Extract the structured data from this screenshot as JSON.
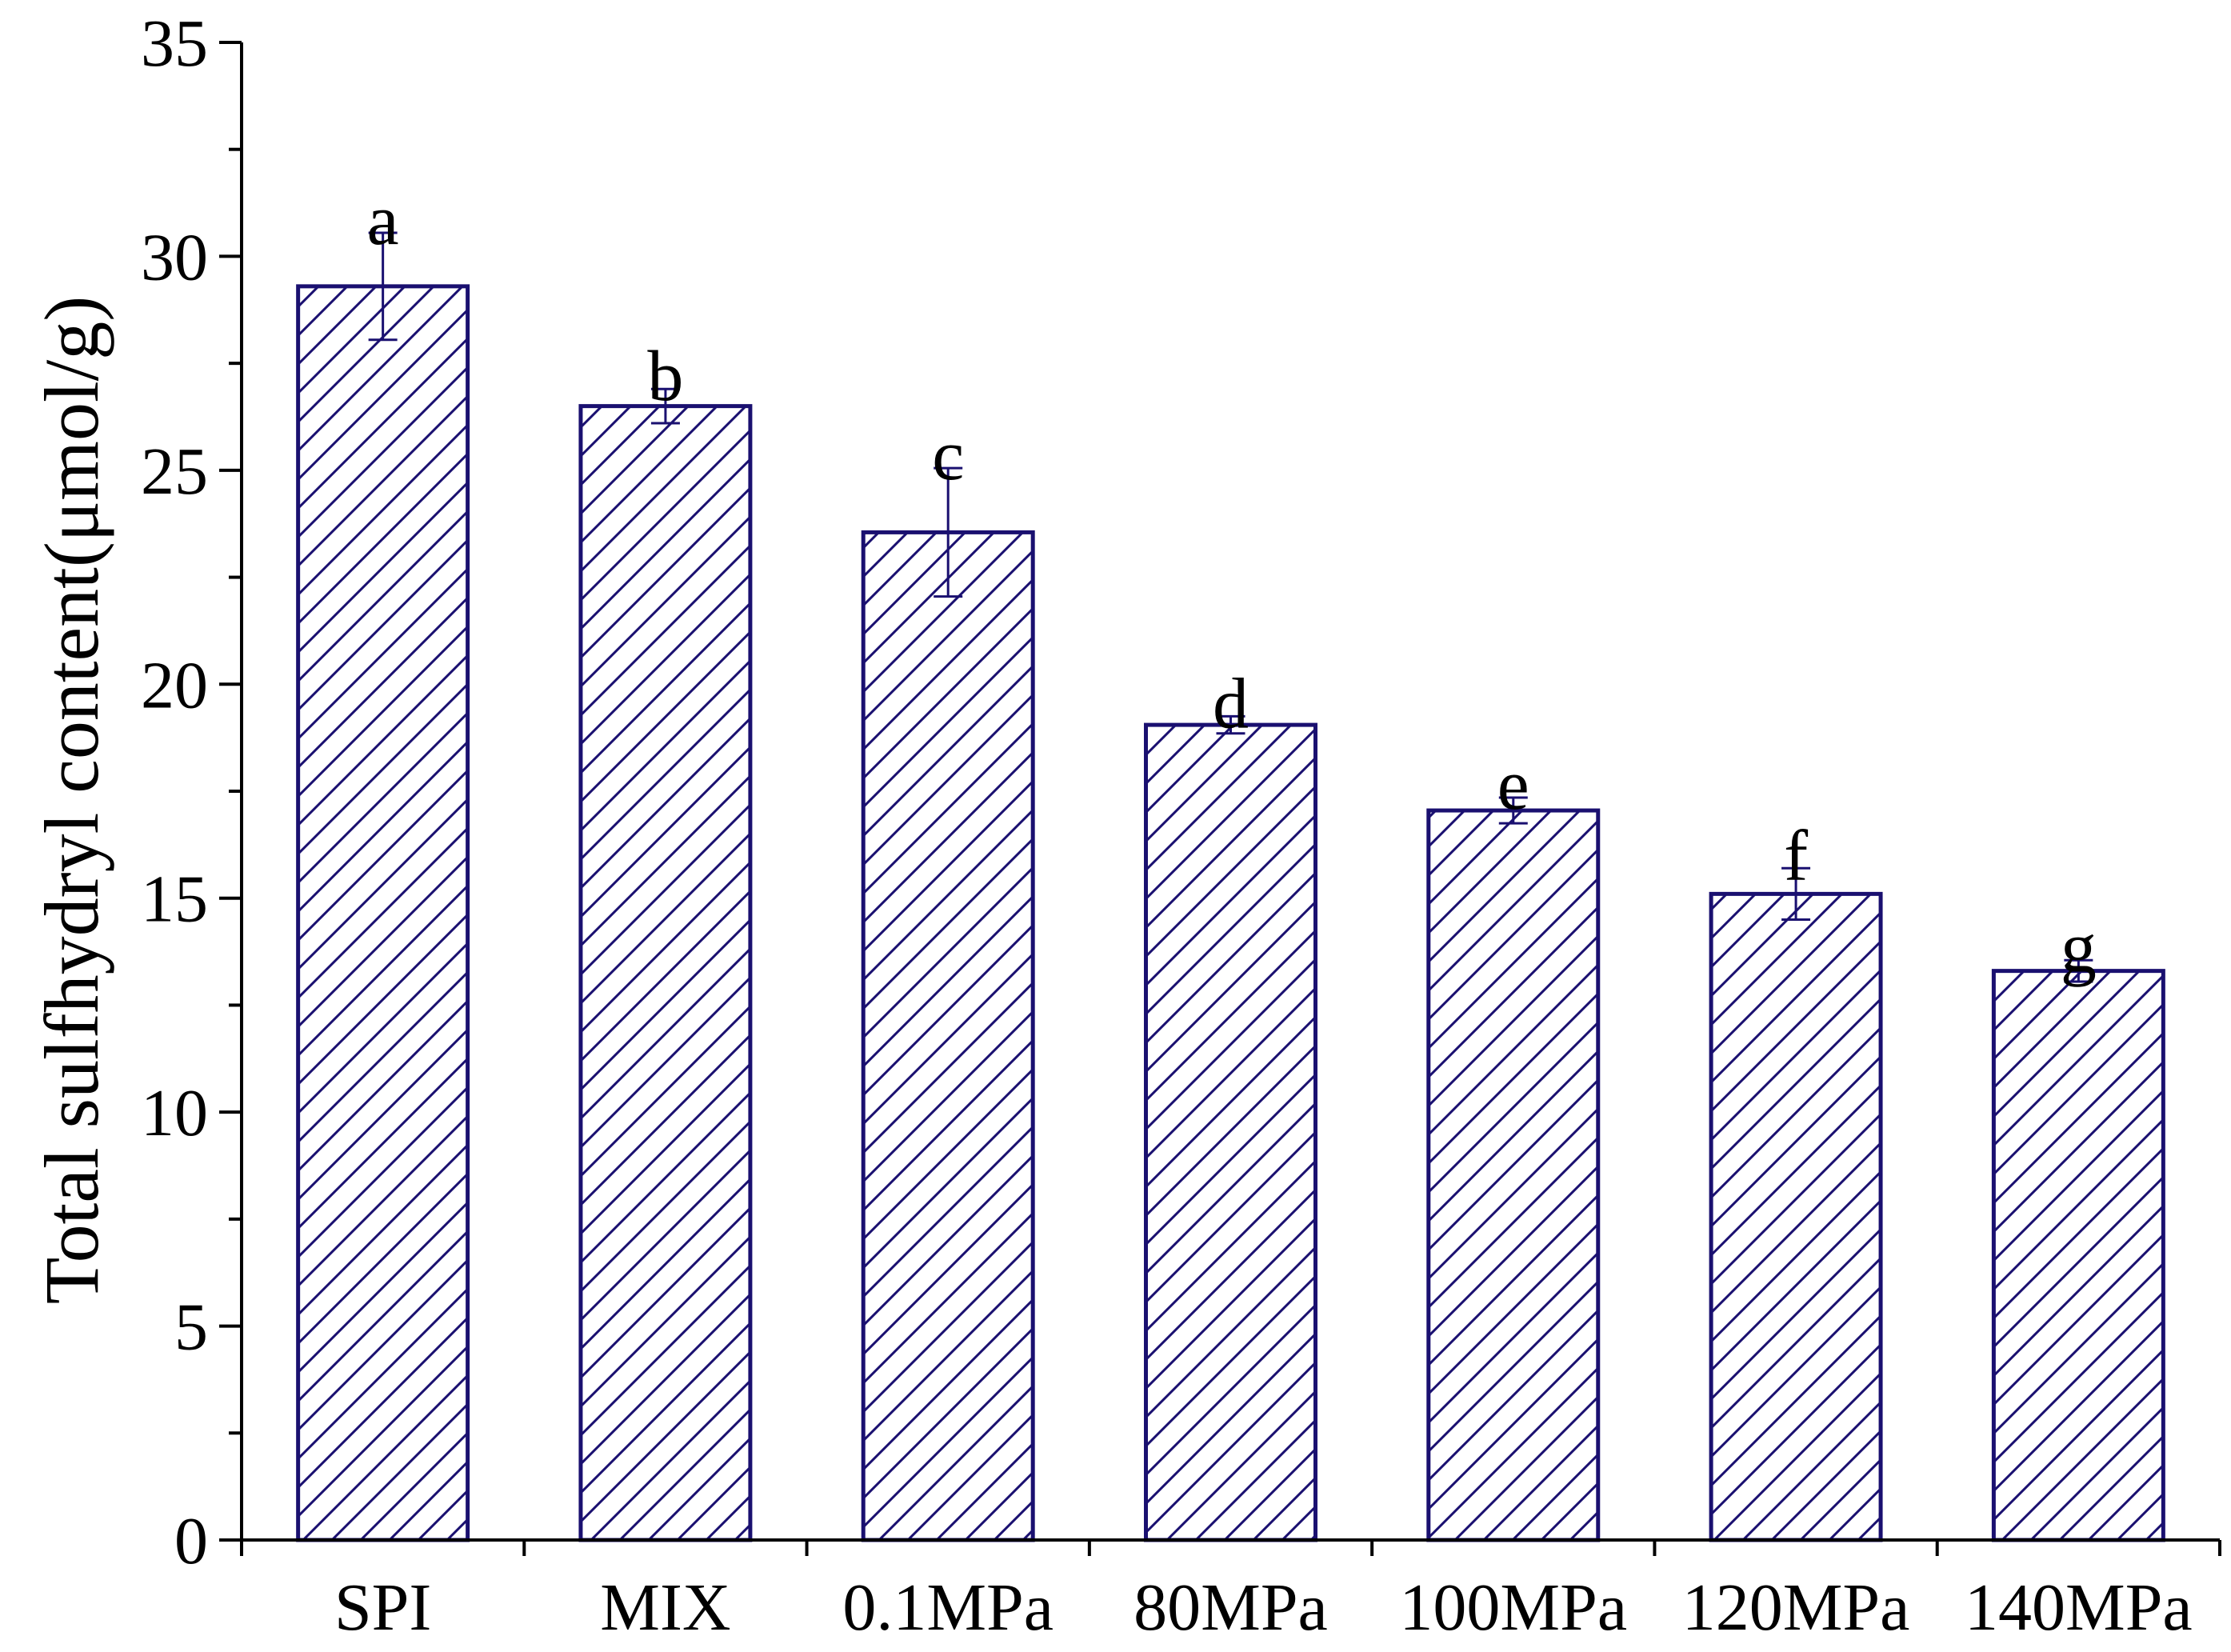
{
  "chart_data": {
    "type": "bar",
    "title": "",
    "xlabel": "",
    "ylabel": "Total sulfhydryl content(μmol/g)",
    "categories": [
      "SPI",
      "MIX",
      "0.1MPa",
      "80MPa",
      "100MPa",
      "120MPa",
      "140MPa"
    ],
    "values": [
      29.3,
      26.5,
      23.55,
      19.05,
      17.05,
      15.1,
      13.3
    ],
    "errors": [
      1.25,
      0.4,
      1.5,
      0.2,
      0.3,
      0.6,
      0.25
    ],
    "significance": [
      "a",
      "b",
      "c",
      "d",
      "e",
      "f",
      "g"
    ],
    "ylim": [
      0,
      35
    ],
    "yticks": [
      0,
      5,
      10,
      15,
      20,
      25,
      30,
      35
    ],
    "grid": false,
    "legend": "none",
    "bar_fill": "hatched",
    "colors": {
      "bar_edge": "#1a1070",
      "hatch": "#1a1070",
      "axis": "#000000"
    }
  }
}
